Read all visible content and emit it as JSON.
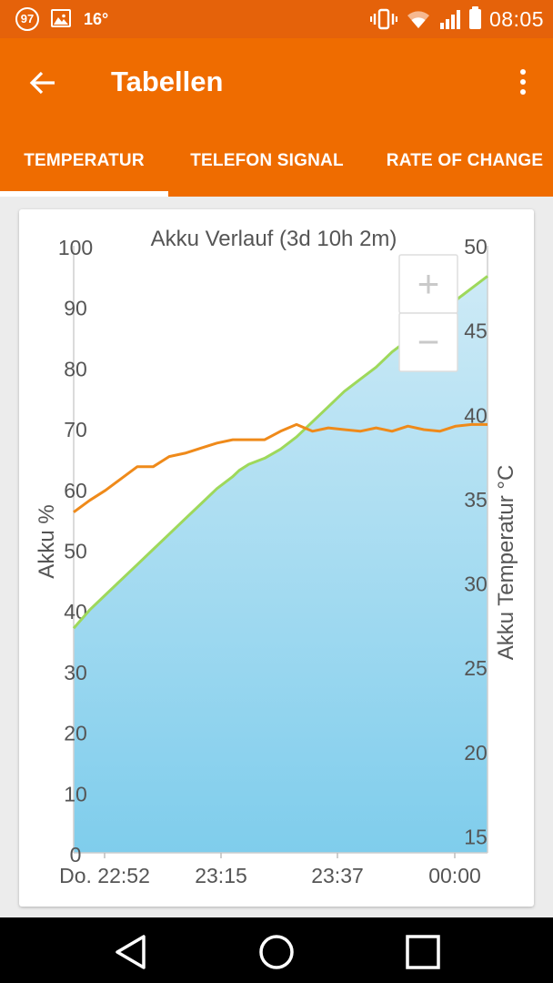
{
  "status_bar": {
    "notification_count": "97",
    "temperature": "16°",
    "time": "08:05",
    "icons": [
      "notification-badge-icon",
      "gallery-icon",
      "vibrate-icon",
      "wifi-icon",
      "signal-icon",
      "battery-icon"
    ]
  },
  "app_bar": {
    "title": "Tabellen",
    "back_icon": "arrow-left-icon",
    "menu_icon": "more-vert-icon"
  },
  "tabs": [
    {
      "label": "TEMPERATUR",
      "selected": true
    },
    {
      "label": "TELEFON SIGNAL",
      "selected": false
    },
    {
      "label": "RATE OF CHANGE",
      "selected": false
    }
  ],
  "colors": {
    "primary": "#ef6c00",
    "status_bar": "#e5620a",
    "battery_line": "#9ed85b",
    "temperature_line": "#ef8a1a",
    "area_fill_top": "#cdeaf6",
    "area_fill_bottom": "#7fcdec"
  },
  "zoom_controls": {
    "zoom_in": "+",
    "zoom_out": "−"
  },
  "chart_data": {
    "type": "line",
    "title": "Akku Verlauf (3d 10h 2m)",
    "ylabel": "Akku %",
    "ylabel_right": "Akku Temperatur °C",
    "ylim": [
      0,
      100
    ],
    "ylim_right": [
      14,
      50
    ],
    "y_ticks": [
      "0",
      "10",
      "20",
      "30",
      "40",
      "50",
      "60",
      "70",
      "80",
      "90",
      "100"
    ],
    "y_ticks_right": [
      "15",
      "20",
      "25",
      "30",
      "35",
      "40",
      "45",
      "50"
    ],
    "x_ticks": [
      "Do. 22:52",
      "23:15",
      "23:37",
      "00:00"
    ],
    "grid": false,
    "series": [
      {
        "axis": "left",
        "style": "area",
        "x_minutes": [
          0,
          5,
          10,
          15,
          20,
          25,
          30,
          35,
          40,
          45,
          50,
          52,
          55,
          60,
          65,
          70,
          75,
          80,
          85,
          90,
          95,
          100,
          105,
          110,
          115,
          120,
          125,
          130
        ],
        "values": [
          37,
          40,
          42.5,
          45,
          47.5,
          50,
          52.5,
          55,
          57.5,
          60,
          62,
          63,
          64,
          65,
          66.5,
          68.5,
          71,
          73.5,
          76,
          78,
          80,
          82.5,
          84.5,
          86.5,
          88.5,
          91,
          93,
          95
        ]
      },
      {
        "axis": "right",
        "style": "line",
        "x_minutes": [
          0,
          5,
          10,
          15,
          20,
          25,
          30,
          35,
          40,
          45,
          50,
          55,
          60,
          65,
          70,
          75,
          80,
          85,
          90,
          95,
          100,
          105,
          110,
          115,
          120,
          125,
          130
        ],
        "values": [
          34.2,
          34.9,
          35.5,
          36.2,
          36.9,
          36.9,
          37.5,
          37.7,
          38.0,
          38.3,
          38.5,
          38.5,
          38.5,
          39.0,
          39.4,
          39.0,
          39.2,
          39.1,
          39.0,
          39.2,
          39.0,
          39.3,
          39.1,
          39.0,
          39.3,
          39.4,
          39.4
        ]
      }
    ]
  }
}
